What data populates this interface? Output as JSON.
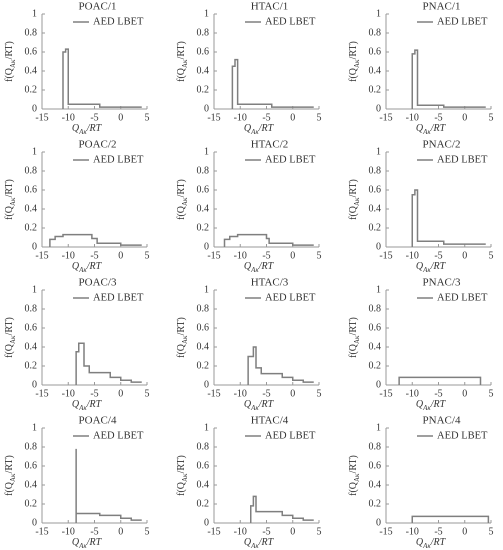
{
  "chart_data": [
    {
      "type": "line",
      "title": "POAC/1",
      "xlabel": [
        "Q",
        "Aκ",
        "/RT"
      ],
      "ylabel": [
        "f(Q",
        "Aκ",
        "/RT)"
      ],
      "xlim": [
        -15,
        5
      ],
      "ylim": [
        0,
        1
      ],
      "xticks": [
        -15,
        -10,
        -5,
        0,
        5
      ],
      "yticks": [
        0,
        0.2,
        0.4,
        0.6,
        0.8,
        1
      ],
      "legend": "upper right",
      "x": [
        -11,
        -11,
        -10.5,
        -10.5,
        -10,
        -10,
        -4,
        -4,
        4
      ],
      "series": [
        {
          "name": "AED LBET",
          "color": "#7f7f7f",
          "values": [
            0,
            0.6,
            0.6,
            0.63,
            0.63,
            0.05,
            0.05,
            0.02,
            0.02
          ]
        }
      ]
    },
    {
      "type": "line",
      "title": "HTAC/1",
      "xlabel": [
        "Q",
        "Aκ",
        "/RT"
      ],
      "ylabel": [
        "f(Q",
        "Aκ",
        "/RT)"
      ],
      "xlim": [
        -15,
        5
      ],
      "ylim": [
        0,
        1
      ],
      "xticks": [
        -15,
        -10,
        -5,
        0,
        5
      ],
      "yticks": [
        0,
        0.2,
        0.4,
        0.6,
        0.8,
        1
      ],
      "legend": "upper right",
      "x": [
        -11.5,
        -11.5,
        -11,
        -11,
        -10.5,
        -10.5,
        -4,
        -4,
        4
      ],
      "series": [
        {
          "name": "AED LBET",
          "color": "#7f7f7f",
          "values": [
            0,
            0.45,
            0.45,
            0.52,
            0.52,
            0.05,
            0.05,
            0.02,
            0.02
          ]
        }
      ]
    },
    {
      "type": "line",
      "title": "PNAC/1",
      "xlabel": [
        "Q",
        "Aκ",
        "/RT"
      ],
      "ylabel": [
        "f(Q",
        "Aκ",
        "/RT)"
      ],
      "xlim": [
        -15,
        5
      ],
      "ylim": [
        0,
        1
      ],
      "xticks": [
        -15,
        -10,
        -5,
        0,
        5
      ],
      "yticks": [
        0,
        0.2,
        0.4,
        0.6,
        0.8,
        1
      ],
      "legend": "upper right",
      "x": [
        -10,
        -10,
        -9.5,
        -9.5,
        -9,
        -9,
        -4,
        -4,
        4
      ],
      "series": [
        {
          "name": "AED LBET",
          "color": "#7f7f7f",
          "values": [
            0,
            0.58,
            0.58,
            0.62,
            0.62,
            0.04,
            0.04,
            0.02,
            0.02
          ]
        }
      ]
    },
    {
      "type": "line",
      "title": "POAC/2",
      "xlabel": [
        "Q",
        "Aκ",
        "/RT"
      ],
      "ylabel": [
        "f(Q",
        "Aκ",
        "/RT)"
      ],
      "xlim": [
        -15,
        5
      ],
      "ylim": [
        0,
        1
      ],
      "xticks": [
        -15,
        -10,
        -5,
        0,
        5
      ],
      "yticks": [
        0,
        0.2,
        0.4,
        0.6,
        0.8,
        1
      ],
      "legend": "upper right",
      "x": [
        -13.5,
        -13.5,
        -12.5,
        -12.5,
        -11,
        -11,
        -5.5,
        -5.5,
        -4.5,
        -4.5,
        0,
        0,
        4
      ],
      "series": [
        {
          "name": "AED LBET",
          "color": "#7f7f7f",
          "values": [
            0,
            0.08,
            0.08,
            0.11,
            0.11,
            0.13,
            0.13,
            0.09,
            0.09,
            0.04,
            0.04,
            0.02,
            0.02
          ]
        }
      ]
    },
    {
      "type": "line",
      "title": "HTAC/2",
      "xlabel": [
        "Q",
        "Aκ",
        "/RT"
      ],
      "ylabel": [
        "f(Q",
        "Aκ",
        "/RT)"
      ],
      "xlim": [
        -15,
        5
      ],
      "ylim": [
        0,
        1
      ],
      "xticks": [
        -15,
        -10,
        -5,
        0,
        5
      ],
      "yticks": [
        0,
        0.2,
        0.4,
        0.6,
        0.8,
        1
      ],
      "legend": "upper right",
      "x": [
        -13,
        -13,
        -12,
        -12,
        -10.5,
        -10.5,
        -5,
        -5,
        -4.5,
        -4.5,
        0,
        0,
        4
      ],
      "series": [
        {
          "name": "AED LBET",
          "color": "#7f7f7f",
          "values": [
            0,
            0.08,
            0.08,
            0.11,
            0.11,
            0.13,
            0.13,
            0.09,
            0.09,
            0.04,
            0.04,
            0.02,
            0.02
          ]
        }
      ]
    },
    {
      "type": "line",
      "title": "PNAC/2",
      "xlabel": [
        "Q",
        "Aκ",
        "/RT"
      ],
      "ylabel": [
        "f(Q",
        "Aκ",
        "/RT)"
      ],
      "xlim": [
        -15,
        5
      ],
      "ylim": [
        0,
        1
      ],
      "xticks": [
        -15,
        -10,
        -5,
        0,
        5
      ],
      "yticks": [
        0,
        0.2,
        0.4,
        0.6,
        0.8,
        1
      ],
      "legend": "upper right",
      "x": [
        -10,
        -10,
        -9.5,
        -9.5,
        -9,
        -9,
        -4,
        -4,
        4
      ],
      "series": [
        {
          "name": "AED LBET",
          "color": "#7f7f7f",
          "values": [
            0,
            0.55,
            0.55,
            0.6,
            0.6,
            0.06,
            0.06,
            0.03,
            0.03
          ]
        }
      ]
    },
    {
      "type": "line",
      "title": "POAC/3",
      "xlabel": [
        "Q",
        "Aκ",
        "/RT"
      ],
      "ylabel": [
        "f(Q",
        "Aκ",
        "/RT)"
      ],
      "xlim": [
        -15,
        5
      ],
      "ylim": [
        0,
        1
      ],
      "xticks": [
        -15,
        -10,
        -5,
        0,
        5
      ],
      "yticks": [
        0,
        0.2,
        0.4,
        0.6,
        0.8,
        1
      ],
      "legend": "upper right",
      "x": [
        -8.5,
        -8.5,
        -8,
        -8,
        -7,
        -7,
        -6,
        -6,
        -2,
        -2,
        0,
        0,
        2,
        2,
        4
      ],
      "series": [
        {
          "name": "AED LBET",
          "color": "#7f7f7f",
          "values": [
            0,
            0.35,
            0.35,
            0.44,
            0.44,
            0.2,
            0.2,
            0.13,
            0.13,
            0.08,
            0.08,
            0.05,
            0.05,
            0.03,
            0.03
          ]
        }
      ]
    },
    {
      "type": "line",
      "title": "HTAC/3",
      "xlabel": [
        "Q",
        "Aκ",
        "/RT"
      ],
      "ylabel": [
        "f(Q",
        "Aκ",
        "/RT)"
      ],
      "xlim": [
        -15,
        5
      ],
      "ylim": [
        0,
        1
      ],
      "xticks": [
        -15,
        -10,
        -5,
        0,
        5
      ],
      "yticks": [
        0,
        0.2,
        0.4,
        0.6,
        0.8,
        1
      ],
      "legend": "upper right",
      "x": [
        -8.5,
        -8.5,
        -7.5,
        -7.5,
        -7,
        -7,
        -6,
        -6,
        -2,
        -2,
        0,
        0,
        2,
        2,
        4
      ],
      "series": [
        {
          "name": "AED LBET",
          "color": "#7f7f7f",
          "values": [
            0,
            0.3,
            0.3,
            0.4,
            0.4,
            0.18,
            0.18,
            0.12,
            0.12,
            0.08,
            0.08,
            0.05,
            0.05,
            0.03,
            0.03
          ]
        }
      ]
    },
    {
      "type": "line",
      "title": "PNAC/3",
      "xlabel": [
        "Q",
        "Aκ",
        "/RT"
      ],
      "ylabel": [
        "f(Q",
        "Aκ",
        "/RT)"
      ],
      "xlim": [
        -15,
        5
      ],
      "ylim": [
        0,
        1
      ],
      "xticks": [
        -15,
        -10,
        -5,
        0,
        5
      ],
      "yticks": [
        0,
        0.2,
        0.4,
        0.6,
        0.8,
        1
      ],
      "legend": "upper right",
      "x": [
        -12.5,
        -12.5,
        3,
        3
      ],
      "series": [
        {
          "name": "AED LBET",
          "color": "#7f7f7f",
          "values": [
            0,
            0.08,
            0.08,
            0
          ]
        }
      ]
    },
    {
      "type": "line",
      "title": "POAC/4",
      "xlabel": [
        "Q",
        "Aκ",
        "/RT"
      ],
      "ylabel": [
        "f(Q",
        "Aκ",
        "/RT)"
      ],
      "xlim": [
        -15,
        5
      ],
      "ylim": [
        0,
        1
      ],
      "xticks": [
        -15,
        -10,
        -5,
        0,
        5
      ],
      "yticks": [
        0,
        0.2,
        0.4,
        0.6,
        0.8,
        1
      ],
      "legend": "upper right",
      "x": [
        -8.5,
        -8.5,
        -8.5,
        -4,
        -4,
        0,
        0,
        2,
        2,
        4
      ],
      "series": [
        {
          "name": "AED LBET",
          "color": "#7f7f7f",
          "values": [
            0,
            0.78,
            0.1,
            0.1,
            0.08,
            0.08,
            0.05,
            0.05,
            0.03,
            0.03
          ]
        }
      ]
    },
    {
      "type": "line",
      "title": "HTAC/4",
      "xlabel": [
        "Q",
        "Aκ",
        "/RT"
      ],
      "ylabel": [
        "f(Q",
        "Aκ",
        "/RT)"
      ],
      "xlim": [
        -15,
        5
      ],
      "ylim": [
        0,
        1
      ],
      "xticks": [
        -15,
        -10,
        -5,
        0,
        5
      ],
      "yticks": [
        0,
        0.2,
        0.4,
        0.6,
        0.8,
        1
      ],
      "legend": "upper right",
      "x": [
        -8,
        -8,
        -7.5,
        -7.5,
        -7,
        -7,
        -2,
        -2,
        0,
        0,
        2,
        2,
        4
      ],
      "series": [
        {
          "name": "AED LBET",
          "color": "#7f7f7f",
          "values": [
            0,
            0.18,
            0.18,
            0.28,
            0.28,
            0.12,
            0.12,
            0.08,
            0.08,
            0.05,
            0.05,
            0.03,
            0.03
          ]
        }
      ]
    },
    {
      "type": "line",
      "title": "PNAC/4",
      "xlabel": [
        "Q",
        "Aκ",
        "/RT"
      ],
      "ylabel": [
        "f(Q",
        "Aκ",
        "/RT)"
      ],
      "xlim": [
        -15,
        5
      ],
      "ylim": [
        0,
        1
      ],
      "xticks": [
        -15,
        -10,
        -5,
        0,
        5
      ],
      "yticks": [
        0,
        0.2,
        0.4,
        0.6,
        0.8,
        1
      ],
      "legend": "upper right",
      "x": [
        -10,
        -10,
        4.5,
        4.5
      ],
      "series": [
        {
          "name": "AED LBET",
          "color": "#7f7f7f",
          "values": [
            0,
            0.07,
            0.07,
            0
          ]
        }
      ]
    }
  ]
}
